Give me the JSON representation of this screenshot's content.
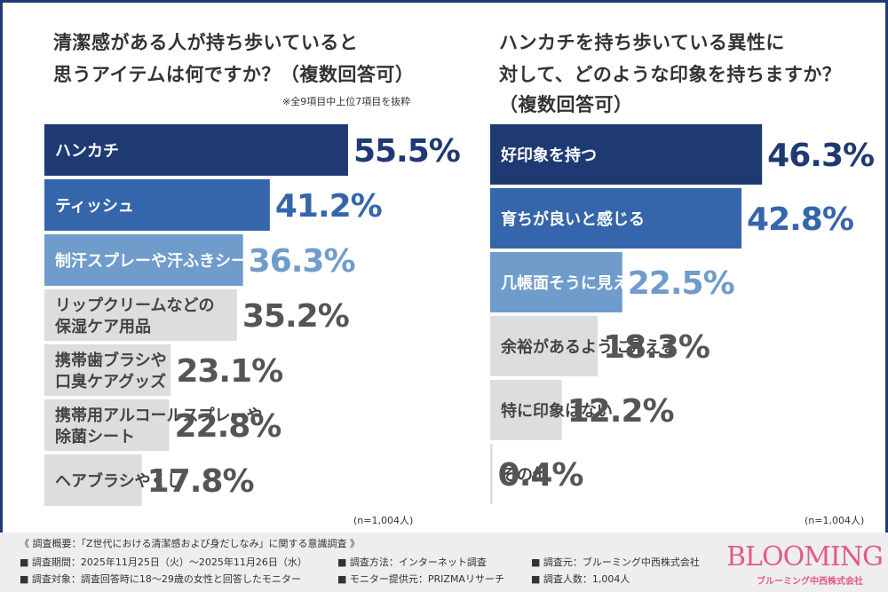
{
  "left": {
    "title1": "清潔感がある人が持ち歩いていると",
    "title2": "思うアイテムは何ですか？（複数回答可）",
    "note": "※全9項目中上位7項目を抜粋",
    "n": "(n=1,004人)"
  },
  "right": {
    "title1": "ハンカチを持ち歩いている異性に",
    "title2": "対して、どのような印象を持ちますか？",
    "title3": "（複数回答可）",
    "n": "(n=1,004人)"
  },
  "chart_data": [
    {
      "type": "bar",
      "orientation": "horizontal",
      "title": "清潔感がある人が持ち歩いていると思うアイテムは何ですか？（複数回答可）",
      "categories": [
        [
          "ハンカチ"
        ],
        [
          "ティッシュ"
        ],
        [
          "制汗スプレーや汗ふきシート"
        ],
        [
          "リップクリームなどの",
          "保湿ケア用品"
        ],
        [
          "携帯歯ブラシや",
          "口臭ケアグッズ"
        ],
        [
          "携帯用アルコールスプレーや",
          "除菌シート"
        ],
        [
          "ヘアブラシやくし"
        ]
      ],
      "values": [
        55.5,
        41.2,
        36.3,
        35.2,
        23.1,
        22.8,
        17.8
      ],
      "labels": [
        "55.5%",
        "41.2%",
        "36.3%",
        "35.2%",
        "23.1%",
        "22.8%",
        "17.8%"
      ],
      "colors": [
        "#1f3a73",
        "#3566ab",
        "#6f9ccb",
        "#dddddd",
        "#dddddd",
        "#dddddd",
        "#dddddd"
      ],
      "value_colors": [
        "#1f3a73",
        "#3566ab",
        "#6f9ccb",
        "#555555",
        "#555555",
        "#555555",
        "#555555"
      ],
      "xlim": [
        0,
        62
      ]
    },
    {
      "type": "bar",
      "orientation": "horizontal",
      "title": "ハンカチを持ち歩いている異性に対して、どのような印象を持ちますか？（複数回答可）",
      "categories": [
        [
          "好印象を持つ"
        ],
        [
          "育ちが良いと感じる"
        ],
        [
          "几帳面そうに見える"
        ],
        [
          "余裕があるように見える"
        ],
        [
          "特に印象はない"
        ],
        [
          "その他"
        ]
      ],
      "values": [
        46.3,
        42.8,
        22.5,
        18.3,
        12.2,
        0.4
      ],
      "labels": [
        "46.3%",
        "42.8%",
        "22.5%",
        "18.3%",
        "12.2%",
        "0.4%"
      ],
      "colors": [
        "#1f3a73",
        "#3566ab",
        "#6f9ccb",
        "#dddddd",
        "#dddddd",
        "#dddddd"
      ],
      "value_colors": [
        "#1f3a73",
        "#3566ab",
        "#6f9ccb",
        "#555555",
        "#555555",
        "#555555"
      ],
      "xlim": [
        0,
        62
      ]
    }
  ],
  "footer": {
    "heading": "《 調査概要：「Z世代における清潔感および身だしなみ」に関する意識調査 》",
    "period": "■ 調査期間：2025年11月25日（火）〜2025年11月26日（水）",
    "method": "■ 調査方法：インターネット調査",
    "source": "■ 調査元：ブルーミング中西株式会社",
    "target": "■ 調査対象：調査回答時に18〜29歳の女性と回答したモニター",
    "provider": "■ モニター提供元：PRIZMAリサーチ",
    "count": "■ 調査人数：1,004人"
  },
  "logo": {
    "name": "BLOOMING",
    "sub": "ブルーミング中西株式会社"
  }
}
